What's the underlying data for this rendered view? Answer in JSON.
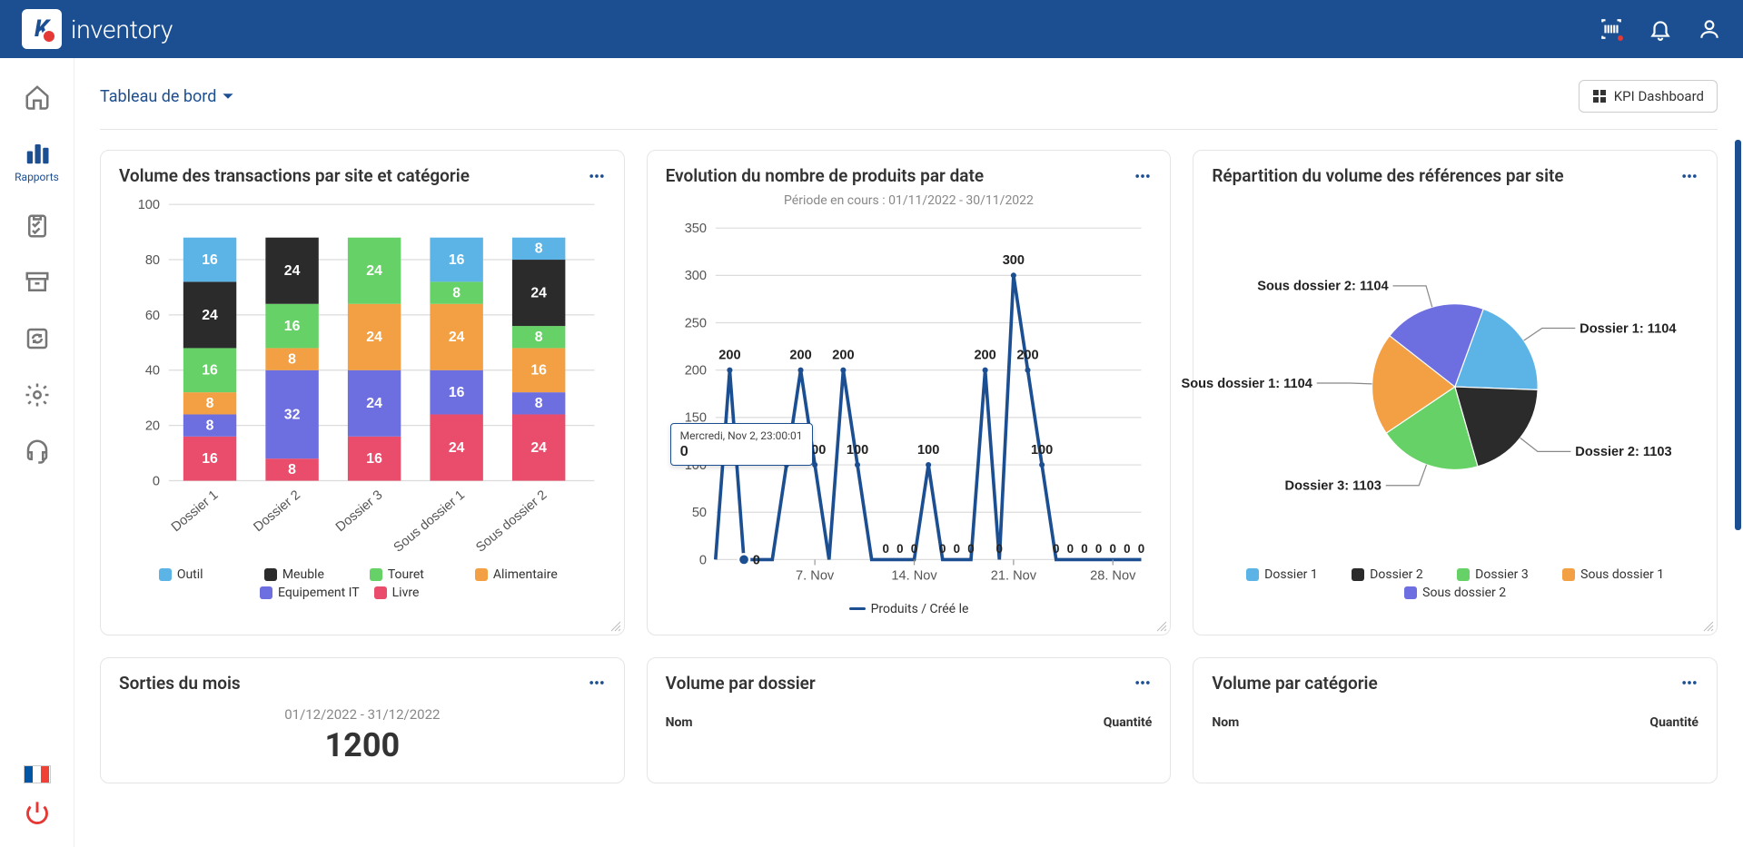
{
  "brand_name": "inventory",
  "sidebar": {
    "active_label": "Rapports"
  },
  "top_actions": {},
  "page": {
    "title": "Tableau de bord",
    "kpi_button": "KPI Dashboard"
  },
  "colors": {
    "primary": "#1c4f92",
    "card_border": "#e5e5e5",
    "axis": "#666",
    "grid": "#dcdcdc"
  },
  "bar_chart": {
    "title": "Volume des transactions par site et catégorie",
    "type": "stacked-bar",
    "ylim": [
      0,
      100
    ],
    "ytick_step": 20,
    "categories": [
      "Dossier 1",
      "Dossier 2",
      "Dossier 3",
      "Sous dossier 1",
      "Sous dossier 2"
    ],
    "series": [
      {
        "name": "Outil",
        "color": "#5cb4e6"
      },
      {
        "name": "Meuble",
        "color": "#2b2b2b"
      },
      {
        "name": "Touret",
        "color": "#66d166"
      },
      {
        "name": "Alimentaire",
        "color": "#f2a043"
      },
      {
        "name": "Equipement IT",
        "color": "#6d6ee0"
      },
      {
        "name": "Livre",
        "color": "#e94d6b"
      }
    ],
    "stacks": [
      [
        {
          "v": 16,
          "c": "#e94d6b"
        },
        {
          "v": 8,
          "c": "#6d6ee0"
        },
        {
          "v": 8,
          "c": "#f2a043"
        },
        {
          "v": 16,
          "c": "#66d166"
        },
        {
          "v": 24,
          "c": "#2b2b2b"
        },
        {
          "v": 16,
          "c": "#5cb4e6"
        }
      ],
      [
        {
          "v": 8,
          "c": "#e94d6b"
        },
        {
          "v": 32,
          "c": "#6d6ee0"
        },
        {
          "v": 8,
          "c": "#f2a043"
        },
        {
          "v": 16,
          "c": "#66d166"
        },
        {
          "v": 24,
          "c": "#2b2b2b"
        }
      ],
      [
        {
          "v": 16,
          "c": "#e94d6b"
        },
        {
          "v": 24,
          "c": "#6d6ee0"
        },
        {
          "v": 24,
          "c": "#f2a043"
        },
        {
          "v": 24,
          "c": "#66d166"
        }
      ],
      [
        {
          "v": 24,
          "c": "#e94d6b"
        },
        {
          "v": 16,
          "c": "#6d6ee0"
        },
        {
          "v": 24,
          "c": "#f2a043"
        },
        {
          "v": 8,
          "c": "#66d166"
        },
        {
          "v": 16,
          "c": "#5cb4e6"
        }
      ],
      [
        {
          "v": 24,
          "c": "#e94d6b"
        },
        {
          "v": 8,
          "c": "#6d6ee0"
        },
        {
          "v": 16,
          "c": "#f2a043"
        },
        {
          "v": 8,
          "c": "#66d166"
        },
        {
          "v": 24,
          "c": "#2b2b2b"
        },
        {
          "v": 8,
          "c": "#5cb4e6"
        }
      ]
    ]
  },
  "line_chart": {
    "title": "Evolution du nombre de produits par date",
    "subtitle": "Période en cours : 01/11/2022 - 30/11/2022",
    "type": "line",
    "ylim": [
      0,
      350
    ],
    "ytick_step": 50,
    "xticks": [
      "7. Nov",
      "14. Nov",
      "21. Nov",
      "28. Nov"
    ],
    "series_label": "Produits / Créé le",
    "line_color": "#1c4f92",
    "tooltip": {
      "label": "Mercredi, Nov 2, 23:00:01",
      "value": "0"
    },
    "points": [
      0,
      200,
      0,
      0,
      0,
      100,
      200,
      100,
      0,
      200,
      100,
      0,
      0,
      0,
      0,
      100,
      0,
      0,
      0,
      200,
      0,
      300,
      200,
      100,
      0,
      0,
      0,
      0,
      0,
      0,
      0
    ]
  },
  "pie_chart": {
    "title": "Répartition du volume des références par site",
    "type": "pie",
    "slices": [
      {
        "name": "Dossier 1",
        "value": 1104,
        "color": "#5cb4e6",
        "label": "Dossier 1: 1104"
      },
      {
        "name": "Dossier 2",
        "value": 1103,
        "color": "#2b2b2b",
        "label": "Dossier 2: 1103"
      },
      {
        "name": "Dossier 3",
        "value": 1103,
        "color": "#66d166",
        "label": "Dossier 3: 1103"
      },
      {
        "name": "Sous dossier 1",
        "value": 1104,
        "color": "#f2a043",
        "label": "Sous dossier 1: 1104"
      },
      {
        "name": "Sous dossier 2",
        "value": 1104,
        "color": "#6d6ee0",
        "label": "Sous dossier 2: 1104"
      }
    ],
    "legend": [
      "Dossier 1",
      "Dossier 2",
      "Dossier 3",
      "Sous dossier 1",
      "Sous dossier 2"
    ]
  },
  "stat_card": {
    "title": "Sorties du mois",
    "range": "01/12/2022 - 31/12/2022",
    "value": "1200"
  },
  "table1": {
    "title": "Volume par dossier",
    "col1": "Nom",
    "col2": "Quantité"
  },
  "table2": {
    "title": "Volume par catégorie",
    "col1": "Nom",
    "col2": "Quantité"
  }
}
